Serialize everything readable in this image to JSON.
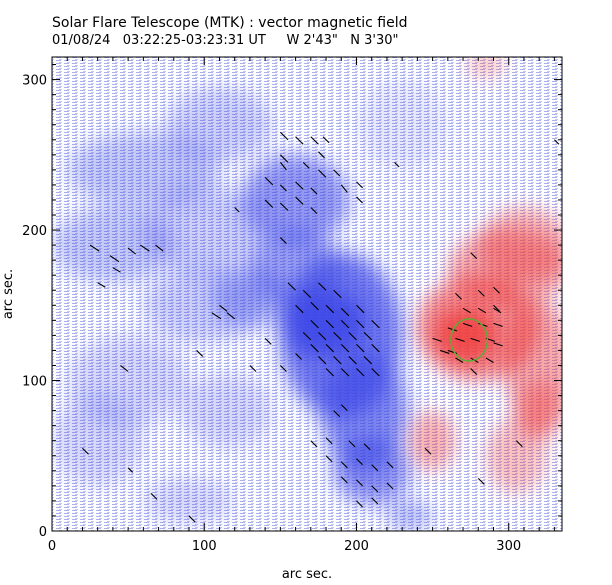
{
  "chart_data": {
    "type": "heatmap",
    "title": "Solar Flare Telescope (MTK) : vector magnetic field",
    "subtitle": "01/08/24   03:22:25-03:23:31 UT     W 2'43\"   N 3'30\"",
    "xlabel": "arc sec.",
    "ylabel": "arc sec.",
    "xlim": [
      0,
      335
    ],
    "ylim": [
      0,
      315
    ],
    "xticks": [
      0,
      100,
      200,
      300
    ],
    "yticks": [
      0,
      100,
      200,
      300
    ],
    "x_minor_step": 10,
    "y_minor_step": 10,
    "colors": {
      "negative_polarity": "#3c46e6",
      "positive_polarity": "#f03c3c",
      "vectors": "#000000",
      "contour": "#50b432"
    },
    "negative_regions": [
      {
        "cx": 178,
        "cy": 138,
        "rx": 28,
        "ry": 22,
        "level": 1.0
      },
      {
        "cx": 190,
        "cy": 130,
        "rx": 40,
        "ry": 55,
        "level": 0.85
      },
      {
        "cx": 205,
        "cy": 80,
        "rx": 28,
        "ry": 40,
        "level": 0.75
      },
      {
        "cx": 210,
        "cy": 40,
        "rx": 25,
        "ry": 22,
        "level": 0.7
      },
      {
        "cx": 160,
        "cy": 220,
        "rx": 35,
        "ry": 30,
        "level": 0.65
      },
      {
        "cx": 160,
        "cy": 175,
        "rx": 30,
        "ry": 25,
        "level": 0.6
      },
      {
        "cx": 130,
        "cy": 155,
        "rx": 25,
        "ry": 20,
        "level": 0.45
      },
      {
        "cx": 60,
        "cy": 240,
        "rx": 50,
        "ry": 25,
        "level": 0.35
      },
      {
        "cx": 40,
        "cy": 190,
        "rx": 40,
        "ry": 25,
        "level": 0.35
      },
      {
        "cx": 100,
        "cy": 200,
        "rx": 40,
        "ry": 30,
        "level": 0.3
      },
      {
        "cx": 100,
        "cy": 150,
        "rx": 40,
        "ry": 25,
        "level": 0.3
      },
      {
        "cx": 50,
        "cy": 100,
        "rx": 40,
        "ry": 30,
        "level": 0.25
      },
      {
        "cx": 30,
        "cy": 60,
        "rx": 30,
        "ry": 30,
        "level": 0.25
      },
      {
        "cx": 115,
        "cy": 80,
        "rx": 30,
        "ry": 25,
        "level": 0.25
      },
      {
        "cx": 110,
        "cy": 270,
        "rx": 35,
        "ry": 25,
        "level": 0.3
      },
      {
        "cx": 230,
        "cy": 270,
        "rx": 30,
        "ry": 30,
        "level": 0.15
      },
      {
        "cx": 235,
        "cy": 10,
        "rx": 15,
        "ry": 10,
        "level": 0.45
      },
      {
        "cx": 90,
        "cy": 20,
        "rx": 30,
        "ry": 15,
        "level": 0.25
      }
    ],
    "positive_regions": [
      {
        "cx": 272,
        "cy": 130,
        "rx": 20,
        "ry": 18,
        "level": 1.0
      },
      {
        "cx": 280,
        "cy": 135,
        "rx": 40,
        "ry": 35,
        "level": 0.75
      },
      {
        "cx": 300,
        "cy": 175,
        "rx": 40,
        "ry": 25,
        "level": 0.55
      },
      {
        "cx": 320,
        "cy": 110,
        "rx": 22,
        "ry": 45,
        "level": 0.55
      },
      {
        "cx": 310,
        "cy": 190,
        "rx": 30,
        "ry": 25,
        "level": 0.5
      },
      {
        "cx": 250,
        "cy": 60,
        "rx": 15,
        "ry": 20,
        "level": 0.5
      },
      {
        "cx": 305,
        "cy": 50,
        "rx": 20,
        "ry": 25,
        "level": 0.4
      },
      {
        "cx": 285,
        "cy": 310,
        "rx": 12,
        "ry": 8,
        "level": 0.4
      },
      {
        "cx": 320,
        "cy": 80,
        "rx": 15,
        "ry": 20,
        "level": 0.45
      }
    ],
    "contour_ellipse": {
      "cx": 274,
      "cy": 127,
      "rx": 12,
      "ry": 14
    },
    "vectors": [
      [
        150,
        265,
        5,
        -5
      ],
      [
        160,
        262,
        5,
        -5
      ],
      [
        170,
        262,
        5,
        -5
      ],
      [
        178,
        262,
        4,
        -4
      ],
      [
        150,
        250,
        5,
        -5
      ],
      [
        165,
        245,
        4,
        -4
      ],
      [
        175,
        240,
        5,
        -5
      ],
      [
        185,
        240,
        4,
        -4
      ],
      [
        140,
        235,
        5,
        -5
      ],
      [
        150,
        230,
        4,
        -4
      ],
      [
        160,
        232,
        5,
        -5
      ],
      [
        170,
        228,
        4,
        -4
      ],
      [
        190,
        230,
        4,
        -5
      ],
      [
        200,
        232,
        4,
        -4
      ],
      [
        140,
        220,
        5,
        -5
      ],
      [
        150,
        218,
        5,
        -5
      ],
      [
        160,
        222,
        5,
        -5
      ],
      [
        170,
        215,
        4,
        -4
      ],
      [
        200,
        222,
        4,
        -4
      ],
      [
        120,
        215,
        3,
        -3
      ],
      [
        150,
        245,
        4,
        -5
      ],
      [
        175,
        252,
        4,
        -4
      ],
      [
        25,
        190,
        6,
        -4
      ],
      [
        38,
        183,
        6,
        -4
      ],
      [
        50,
        188,
        5,
        -4
      ],
      [
        58,
        190,
        6,
        -4
      ],
      [
        68,
        190,
        5,
        -4
      ],
      [
        110,
        150,
        5,
        -4
      ],
      [
        115,
        145,
        5,
        -4
      ],
      [
        105,
        145,
        6,
        -4
      ],
      [
        30,
        165,
        5,
        -3
      ],
      [
        40,
        175,
        5,
        -3
      ],
      [
        155,
        165,
        5,
        -5
      ],
      [
        165,
        160,
        5,
        -5
      ],
      [
        175,
        165,
        5,
        -5
      ],
      [
        185,
        160,
        5,
        -5
      ],
      [
        160,
        150,
        5,
        -5
      ],
      [
        170,
        152,
        5,
        -5
      ],
      [
        180,
        150,
        5,
        -5
      ],
      [
        190,
        148,
        5,
        -5
      ],
      [
        200,
        150,
        5,
        -5
      ],
      [
        170,
        140,
        5,
        -5
      ],
      [
        180,
        140,
        5,
        -5
      ],
      [
        190,
        140,
        5,
        -5
      ],
      [
        200,
        140,
        5,
        -5
      ],
      [
        210,
        140,
        5,
        -5
      ],
      [
        165,
        132,
        5,
        -5
      ],
      [
        175,
        132,
        5,
        -5
      ],
      [
        185,
        132,
        5,
        -5
      ],
      [
        195,
        132,
        5,
        -5
      ],
      [
        205,
        132,
        5,
        -5
      ],
      [
        170,
        124,
        5,
        -5
      ],
      [
        180,
        124,
        5,
        -5
      ],
      [
        190,
        124,
        5,
        -5
      ],
      [
        200,
        124,
        5,
        -5
      ],
      [
        210,
        124,
        5,
        -5
      ],
      [
        175,
        116,
        5,
        -5
      ],
      [
        185,
        116,
        5,
        -5
      ],
      [
        195,
        116,
        5,
        -5
      ],
      [
        205,
        116,
        5,
        -5
      ],
      [
        180,
        108,
        5,
        -5
      ],
      [
        190,
        108,
        5,
        -5
      ],
      [
        200,
        108,
        5,
        -5
      ],
      [
        210,
        108,
        5,
        -5
      ],
      [
        140,
        128,
        4,
        -4
      ],
      [
        160,
        118,
        4,
        -4
      ],
      [
        150,
        110,
        4,
        -4
      ],
      [
        45,
        110,
        5,
        -4
      ],
      [
        95,
        120,
        4,
        -4
      ],
      [
        130,
        110,
        4,
        -4
      ],
      [
        185,
        80,
        4,
        -4
      ],
      [
        190,
        84,
        4,
        -4
      ],
      [
        170,
        60,
        4,
        -4
      ],
      [
        180,
        62,
        4,
        -4
      ],
      [
        195,
        60,
        4,
        -4
      ],
      [
        205,
        58,
        4,
        -4
      ],
      [
        180,
        50,
        4,
        -4
      ],
      [
        190,
        46,
        4,
        -4
      ],
      [
        200,
        48,
        4,
        -4
      ],
      [
        210,
        44,
        4,
        -4
      ],
      [
        220,
        46,
        4,
        -4
      ],
      [
        190,
        36,
        4,
        -4
      ],
      [
        200,
        34,
        4,
        -4
      ],
      [
        210,
        30,
        4,
        -4
      ],
      [
        220,
        32,
        4,
        -4
      ],
      [
        200,
        20,
        4,
        -4
      ],
      [
        210,
        22,
        4,
        -4
      ],
      [
        20,
        55,
        4,
        -4
      ],
      [
        50,
        42,
        3,
        -3
      ],
      [
        65,
        25,
        4,
        -4
      ],
      [
        90,
        10,
        4,
        -4
      ],
      [
        260,
        120,
        6,
        -2
      ],
      [
        265,
        128,
        6,
        -2
      ],
      [
        275,
        128,
        6,
        -2
      ],
      [
        285,
        128,
        6,
        -2
      ],
      [
        260,
        135,
        6,
        -2
      ],
      [
        270,
        138,
        6,
        -2
      ],
      [
        280,
        138,
        6,
        -2
      ],
      [
        290,
        138,
        6,
        -2
      ],
      [
        265,
        115,
        5,
        -3
      ],
      [
        275,
        115,
        5,
        -3
      ],
      [
        285,
        115,
        5,
        -3
      ],
      [
        270,
        148,
        5,
        -3
      ],
      [
        280,
        148,
        5,
        -3
      ],
      [
        290,
        148,
        5,
        -3
      ],
      [
        265,
        158,
        4,
        -4
      ],
      [
        280,
        160,
        4,
        -4
      ],
      [
        290,
        162,
        4,
        -4
      ],
      [
        250,
        128,
        6,
        -2
      ],
      [
        255,
        120,
        6,
        -2
      ],
      [
        290,
        125,
        6,
        -2
      ],
      [
        275,
        108,
        4,
        -4
      ],
      [
        290,
        150,
        4,
        -4
      ],
      [
        275,
        185,
        4,
        -4
      ],
      [
        305,
        60,
        4,
        -4
      ],
      [
        280,
        35,
        4,
        -4
      ],
      [
        245,
        55,
        4,
        -4
      ],
      [
        330,
        260,
        3,
        -3
      ],
      [
        335,
        110,
        3,
        -3
      ],
      [
        150,
        195,
        4,
        -4
      ],
      [
        225,
        245,
        3,
        -3
      ]
    ]
  }
}
